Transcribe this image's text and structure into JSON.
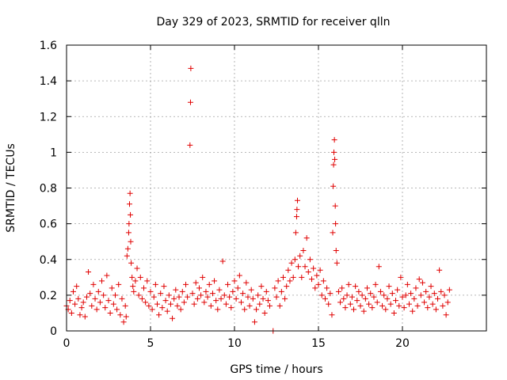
{
  "chart_data": {
    "type": "scatter",
    "title": "Day 329 of 2023, SRMTID for receiver qlln",
    "xlabel": "GPS time / hours",
    "ylabel": "SRMTID / TECUs",
    "xlim": [
      0,
      25
    ],
    "ylim": [
      0,
      1.6
    ],
    "xticks": [
      0,
      5,
      10,
      15,
      20
    ],
    "xtick_labels": [
      "0",
      "5",
      "10",
      "15",
      "20"
    ],
    "yticks": [
      0,
      0.2,
      0.4,
      0.6,
      0.8,
      1.0,
      1.2,
      1.4,
      1.6
    ],
    "ytick_labels": [
      "0",
      "0.2",
      "0.4",
      "0.6",
      "0.8",
      "1",
      "1.2",
      "1.4",
      "1.6"
    ],
    "grid": true,
    "series": [
      {
        "name": "SRMTID",
        "color": "#e00000",
        "marker": "plus",
        "points": [
          [
            0.0,
            0.14
          ],
          [
            0.1,
            0.12
          ],
          [
            0.2,
            0.17
          ],
          [
            0.3,
            0.1
          ],
          [
            0.4,
            0.22
          ],
          [
            0.5,
            0.15
          ],
          [
            0.6,
            0.25
          ],
          [
            0.7,
            0.18
          ],
          [
            0.8,
            0.09
          ],
          [
            0.9,
            0.13
          ],
          [
            1.0,
            0.16
          ],
          [
            1.1,
            0.08
          ],
          [
            1.2,
            0.19
          ],
          [
            1.3,
            0.33
          ],
          [
            1.4,
            0.21
          ],
          [
            1.5,
            0.14
          ],
          [
            1.6,
            0.26
          ],
          [
            1.7,
            0.18
          ],
          [
            1.8,
            0.12
          ],
          [
            1.9,
            0.22
          ],
          [
            2.0,
            0.16
          ],
          [
            2.1,
            0.28
          ],
          [
            2.2,
            0.2
          ],
          [
            2.3,
            0.13
          ],
          [
            2.4,
            0.31
          ],
          [
            2.5,
            0.17
          ],
          [
            2.6,
            0.1
          ],
          [
            2.7,
            0.24
          ],
          [
            2.8,
            0.15
          ],
          [
            2.9,
            0.2
          ],
          [
            3.0,
            0.12
          ],
          [
            3.1,
            0.26
          ],
          [
            3.2,
            0.09
          ],
          [
            3.3,
            0.18
          ],
          [
            3.4,
            0.05
          ],
          [
            3.5,
            0.14
          ],
          [
            3.55,
            0.08
          ],
          [
            3.6,
            0.42
          ],
          [
            3.65,
            0.46
          ],
          [
            3.7,
            0.55
          ],
          [
            3.72,
            0.6
          ],
          [
            3.75,
            0.71
          ],
          [
            3.78,
            0.77
          ],
          [
            3.8,
            0.65
          ],
          [
            3.82,
            0.5
          ],
          [
            3.85,
            0.38
          ],
          [
            3.9,
            0.3
          ],
          [
            3.95,
            0.25
          ],
          [
            4.0,
            0.22
          ],
          [
            4.1,
            0.28
          ],
          [
            4.2,
            0.35
          ],
          [
            4.3,
            0.2
          ],
          [
            4.4,
            0.3
          ],
          [
            4.5,
            0.18
          ],
          [
            4.6,
            0.24
          ],
          [
            4.7,
            0.16
          ],
          [
            4.8,
            0.28
          ],
          [
            4.9,
            0.14
          ],
          [
            5.0,
            0.22
          ],
          [
            5.1,
            0.12
          ],
          [
            5.2,
            0.19
          ],
          [
            5.3,
            0.26
          ],
          [
            5.4,
            0.15
          ],
          [
            5.5,
            0.09
          ],
          [
            5.6,
            0.21
          ],
          [
            5.7,
            0.13
          ],
          [
            5.8,
            0.25
          ],
          [
            5.9,
            0.17
          ],
          [
            6.0,
            0.11
          ],
          [
            6.1,
            0.2
          ],
          [
            6.2,
            0.15
          ],
          [
            6.3,
            0.07
          ],
          [
            6.4,
            0.18
          ],
          [
            6.5,
            0.23
          ],
          [
            6.6,
            0.14
          ],
          [
            6.7,
            0.19
          ],
          [
            6.8,
            0.12
          ],
          [
            6.9,
            0.22
          ],
          [
            7.0,
            0.16
          ],
          [
            7.1,
            0.26
          ],
          [
            7.2,
            0.19
          ],
          [
            7.35,
            1.04
          ],
          [
            7.38,
            1.28
          ],
          [
            7.4,
            1.47
          ],
          [
            7.5,
            0.21
          ],
          [
            7.6,
            0.15
          ],
          [
            7.7,
            0.27
          ],
          [
            7.8,
            0.18
          ],
          [
            7.9,
            0.24
          ],
          [
            8.0,
            0.2
          ],
          [
            8.1,
            0.3
          ],
          [
            8.2,
            0.16
          ],
          [
            8.3,
            0.22
          ],
          [
            8.4,
            0.19
          ],
          [
            8.5,
            0.26
          ],
          [
            8.6,
            0.14
          ],
          [
            8.7,
            0.21
          ],
          [
            8.8,
            0.28
          ],
          [
            8.9,
            0.17
          ],
          [
            9.0,
            0.12
          ],
          [
            9.1,
            0.23
          ],
          [
            9.2,
            0.18
          ],
          [
            9.3,
            0.39
          ],
          [
            9.4,
            0.2
          ],
          [
            9.5,
            0.15
          ],
          [
            9.6,
            0.26
          ],
          [
            9.7,
            0.19
          ],
          [
            9.8,
            0.13
          ],
          [
            9.9,
            0.22
          ],
          [
            10.0,
            0.28
          ],
          [
            10.1,
            0.18
          ],
          [
            10.2,
            0.24
          ],
          [
            10.3,
            0.31
          ],
          [
            10.4,
            0.16
          ],
          [
            10.5,
            0.21
          ],
          [
            10.6,
            0.12
          ],
          [
            10.7,
            0.27
          ],
          [
            10.8,
            0.19
          ],
          [
            10.9,
            0.14
          ],
          [
            11.0,
            0.23
          ],
          [
            11.1,
            0.18
          ],
          [
            11.2,
            0.05
          ],
          [
            11.3,
            0.12
          ],
          [
            11.4,
            0.2
          ],
          [
            11.5,
            0.15
          ],
          [
            11.6,
            0.25
          ],
          [
            11.7,
            0.18
          ],
          [
            11.8,
            0.1
          ],
          [
            11.9,
            0.22
          ],
          [
            12.0,
            0.17
          ],
          [
            12.1,
            0.14
          ],
          [
            12.3,
            0.0
          ],
          [
            12.4,
            0.24
          ],
          [
            12.5,
            0.19
          ],
          [
            12.6,
            0.28
          ],
          [
            12.7,
            0.14
          ],
          [
            12.8,
            0.22
          ],
          [
            12.9,
            0.3
          ],
          [
            13.0,
            0.18
          ],
          [
            13.1,
            0.25
          ],
          [
            13.2,
            0.34
          ],
          [
            13.3,
            0.28
          ],
          [
            13.4,
            0.38
          ],
          [
            13.5,
            0.3
          ],
          [
            13.6,
            0.4
          ],
          [
            13.65,
            0.55
          ],
          [
            13.7,
            0.64
          ],
          [
            13.72,
            0.68
          ],
          [
            13.75,
            0.73
          ],
          [
            13.8,
            0.36
          ],
          [
            13.9,
            0.42
          ],
          [
            14.0,
            0.3
          ],
          [
            14.1,
            0.45
          ],
          [
            14.2,
            0.36
          ],
          [
            14.3,
            0.52
          ],
          [
            14.4,
            0.33
          ],
          [
            14.5,
            0.4
          ],
          [
            14.6,
            0.29
          ],
          [
            14.7,
            0.35
          ],
          [
            14.8,
            0.24
          ],
          [
            14.9,
            0.31
          ],
          [
            15.0,
            0.26
          ],
          [
            15.1,
            0.34
          ],
          [
            15.2,
            0.2
          ],
          [
            15.3,
            0.28
          ],
          [
            15.4,
            0.18
          ],
          [
            15.5,
            0.24
          ],
          [
            15.6,
            0.15
          ],
          [
            15.7,
            0.21
          ],
          [
            15.8,
            0.09
          ],
          [
            15.85,
            0.55
          ],
          [
            15.88,
            0.81
          ],
          [
            15.9,
            0.93
          ],
          [
            15.92,
            1.0
          ],
          [
            15.95,
            1.07
          ],
          [
            15.97,
            0.96
          ],
          [
            16.0,
            0.7
          ],
          [
            16.02,
            0.6
          ],
          [
            16.05,
            0.45
          ],
          [
            16.1,
            0.38
          ],
          [
            16.2,
            0.22
          ],
          [
            16.3,
            0.16
          ],
          [
            16.4,
            0.24
          ],
          [
            16.5,
            0.18
          ],
          [
            16.6,
            0.13
          ],
          [
            16.7,
            0.2
          ],
          [
            16.8,
            0.26
          ],
          [
            16.9,
            0.15
          ],
          [
            17.0,
            0.19
          ],
          [
            17.1,
            0.12
          ],
          [
            17.2,
            0.25
          ],
          [
            17.3,
            0.17
          ],
          [
            17.4,
            0.22
          ],
          [
            17.5,
            0.14
          ],
          [
            17.6,
            0.2
          ],
          [
            17.7,
            0.11
          ],
          [
            17.8,
            0.18
          ],
          [
            17.9,
            0.24
          ],
          [
            18.0,
            0.15
          ],
          [
            18.1,
            0.21
          ],
          [
            18.2,
            0.13
          ],
          [
            18.3,
            0.19
          ],
          [
            18.4,
            0.26
          ],
          [
            18.5,
            0.16
          ],
          [
            18.6,
            0.36
          ],
          [
            18.7,
            0.22
          ],
          [
            18.8,
            0.14
          ],
          [
            18.9,
            0.2
          ],
          [
            19.0,
            0.12
          ],
          [
            19.1,
            0.18
          ],
          [
            19.2,
            0.25
          ],
          [
            19.3,
            0.15
          ],
          [
            19.4,
            0.21
          ],
          [
            19.5,
            0.1
          ],
          [
            19.6,
            0.17
          ],
          [
            19.7,
            0.23
          ],
          [
            19.8,
            0.14
          ],
          [
            19.9,
            0.3
          ],
          [
            20.0,
            0.19
          ],
          [
            20.1,
            0.13
          ],
          [
            20.2,
            0.2
          ],
          [
            20.3,
            0.26
          ],
          [
            20.4,
            0.15
          ],
          [
            20.5,
            0.21
          ],
          [
            20.6,
            0.11
          ],
          [
            20.7,
            0.18
          ],
          [
            20.8,
            0.24
          ],
          [
            20.9,
            0.14
          ],
          [
            21.0,
            0.29
          ],
          [
            21.1,
            0.2
          ],
          [
            21.2,
            0.27
          ],
          [
            21.3,
            0.16
          ],
          [
            21.4,
            0.22
          ],
          [
            21.5,
            0.13
          ],
          [
            21.6,
            0.19
          ],
          [
            21.7,
            0.25
          ],
          [
            21.8,
            0.15
          ],
          [
            21.9,
            0.21
          ],
          [
            22.0,
            0.12
          ],
          [
            22.1,
            0.18
          ],
          [
            22.2,
            0.34
          ],
          [
            22.3,
            0.22
          ],
          [
            22.4,
            0.14
          ],
          [
            22.5,
            0.2
          ],
          [
            22.6,
            0.09
          ],
          [
            22.7,
            0.16
          ],
          [
            22.8,
            0.23
          ]
        ]
      }
    ]
  }
}
